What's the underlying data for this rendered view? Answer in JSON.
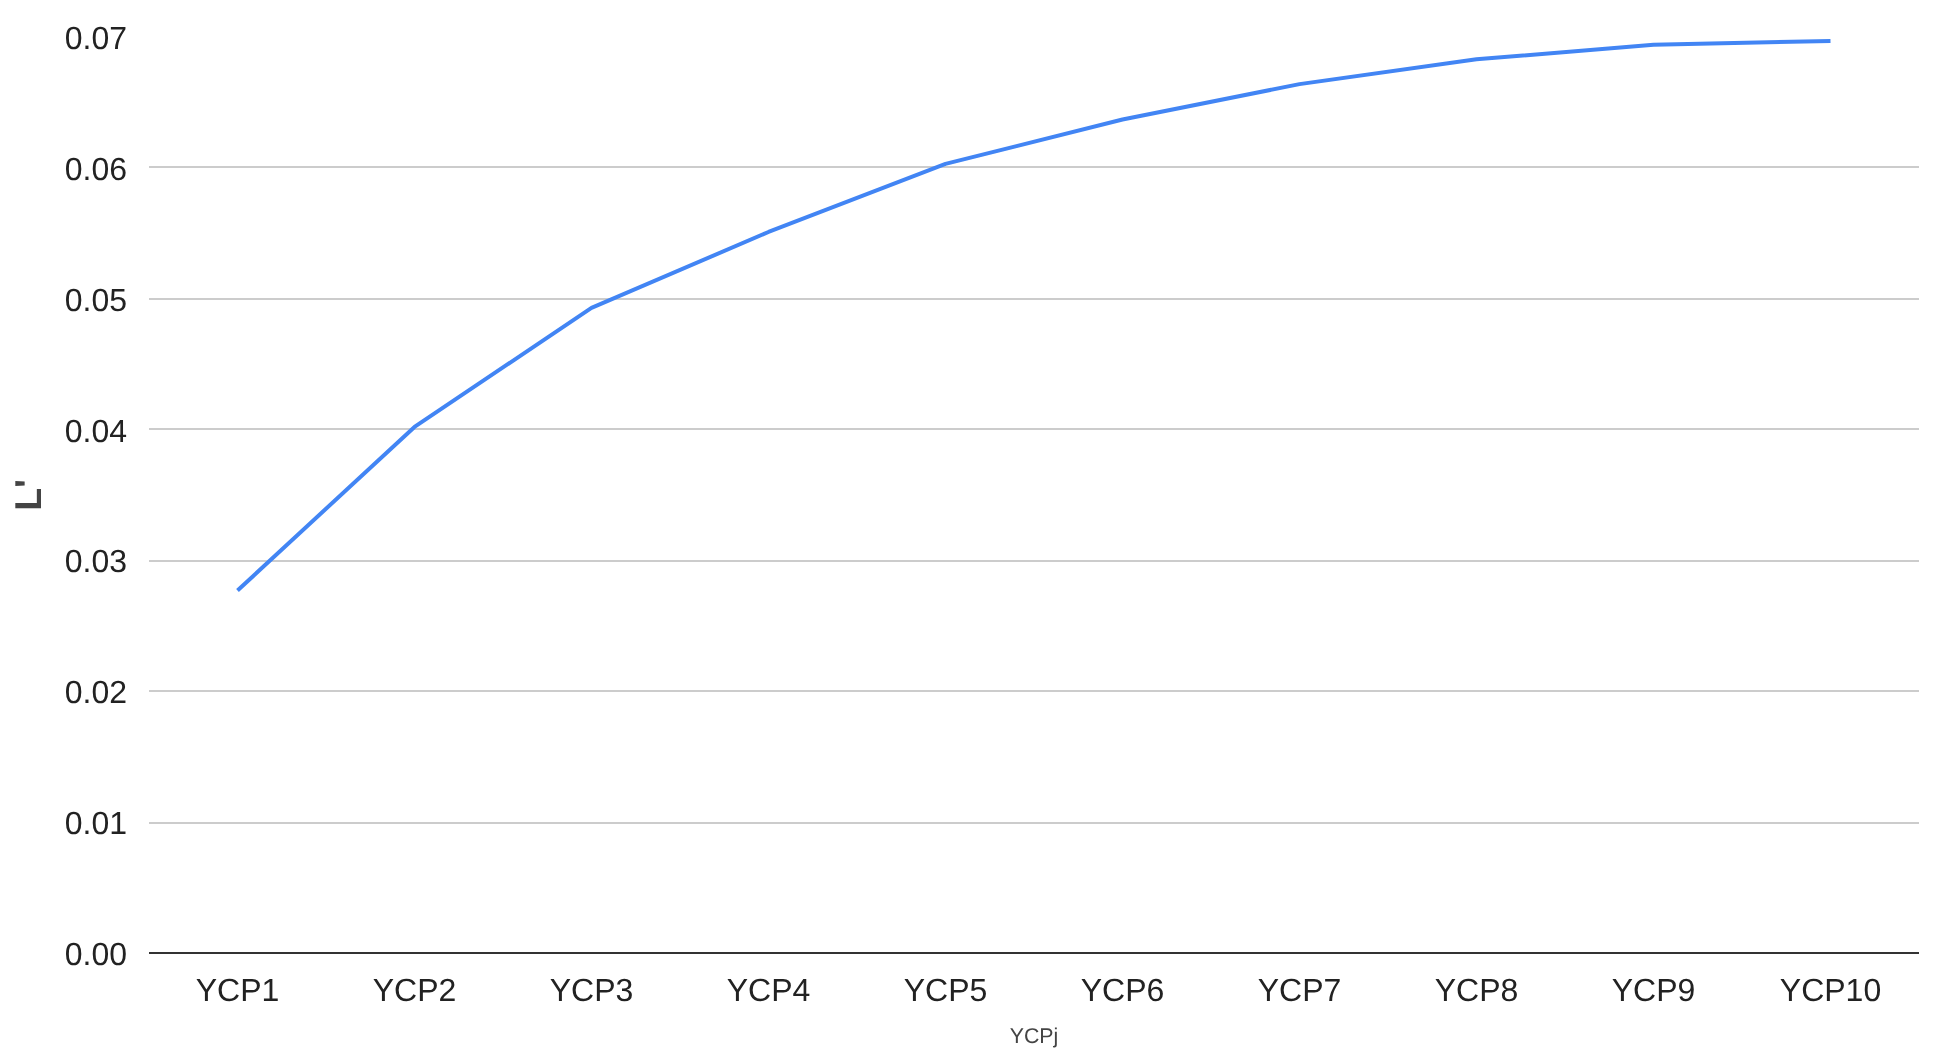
{
  "chart_data": {
    "type": "line",
    "xlabel": "YCPj",
    "ylabel": "L'",
    "categories": [
      "YCP1",
      "YCP2",
      "YCP3",
      "YCP4",
      "YCP5",
      "YCP6",
      "YCP7",
      "YCP8",
      "YCP9",
      "YCP10"
    ],
    "series": [
      {
        "color": "#4285f4",
        "values": [
          0.0277,
          0.0402,
          0.0493,
          0.0551,
          0.0603,
          0.0637,
          0.0664,
          0.0683,
          0.0694,
          0.0697
        ]
      }
    ],
    "ylim": [
      0,
      0.07
    ],
    "yticks": [
      {
        "value": 0,
        "label": "0.00"
      },
      {
        "value": 0.01,
        "label": "0.01"
      },
      {
        "value": 0.02,
        "label": "0.02"
      },
      {
        "value": 0.03,
        "label": "0.03"
      },
      {
        "value": 0.04,
        "label": "0.04"
      },
      {
        "value": 0.05,
        "label": "0.05"
      },
      {
        "value": 0.06,
        "label": "0.06"
      },
      {
        "value": 0.07,
        "label": "0.07"
      }
    ],
    "grid": "y"
  }
}
